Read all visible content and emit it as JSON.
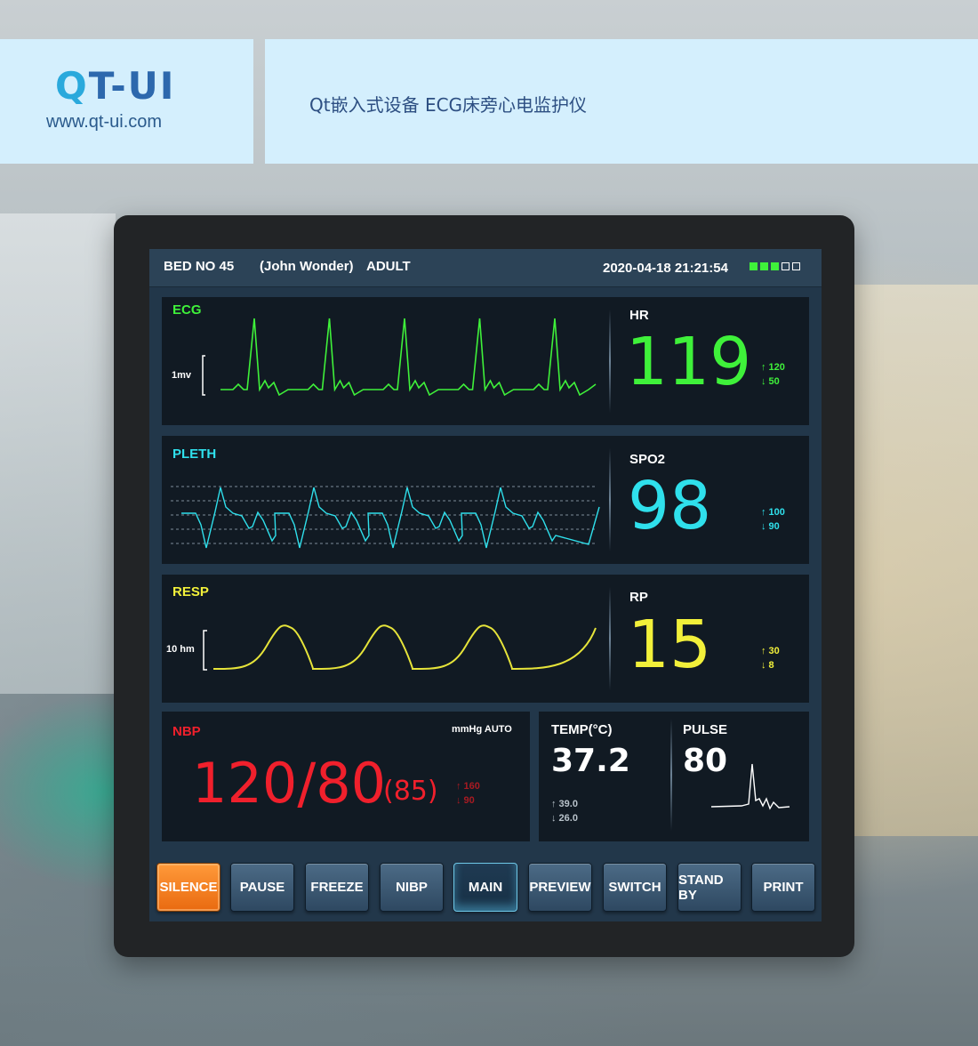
{
  "brand": {
    "logo_q": "Q",
    "logo_rest": "T-UI",
    "url": "www.qt-ui.com",
    "title": "Qt嵌入式设备 ECG床旁心电监护仪"
  },
  "topbar": {
    "bed": "BED NO 45",
    "patient": "(John Wonder)",
    "patient_type": "ADULT",
    "datetime": "2020-04-18 21:21:54",
    "indicators": [
      true,
      true,
      true,
      false,
      false
    ]
  },
  "ecg": {
    "label": "ECG",
    "scale": "1mv",
    "color": "#3ff13a"
  },
  "hr": {
    "label": "HR",
    "value": "119",
    "high": "↑ 120",
    "low": "↓ 50",
    "color": "#3ff13a"
  },
  "pleth": {
    "label": "PLETH",
    "color": "#2fe0ec"
  },
  "spo2": {
    "label": "SPO2",
    "value": "98",
    "high": "↑ 100",
    "low": "↓ 90",
    "color": "#2fe0ec"
  },
  "resp": {
    "label": "RESP",
    "scale": "10 hm",
    "color": "#f2f03a"
  },
  "rp": {
    "label": "RP",
    "value": "15",
    "high": "↑ 30",
    "low": "↓ 8",
    "color": "#f2f03a"
  },
  "nbp": {
    "label": "NBP",
    "unit": "mmHg AUTO",
    "value": "120/80",
    "mean": "(85)",
    "high": "↑ 160",
    "low": "↓ 90",
    "color": "#f0202c"
  },
  "temp": {
    "label": "TEMP(°C)",
    "value": "37.2",
    "high": "↑ 39.0",
    "low": "↓ 26.0"
  },
  "pulse": {
    "label": "PULSE",
    "value": "80"
  },
  "buttons": [
    "SILENCE",
    "PAUSE",
    "FREEZE",
    "NIBP",
    "MAIN",
    "PREVIEW",
    "SWITCH",
    "STAND BY",
    "PRINT"
  ]
}
